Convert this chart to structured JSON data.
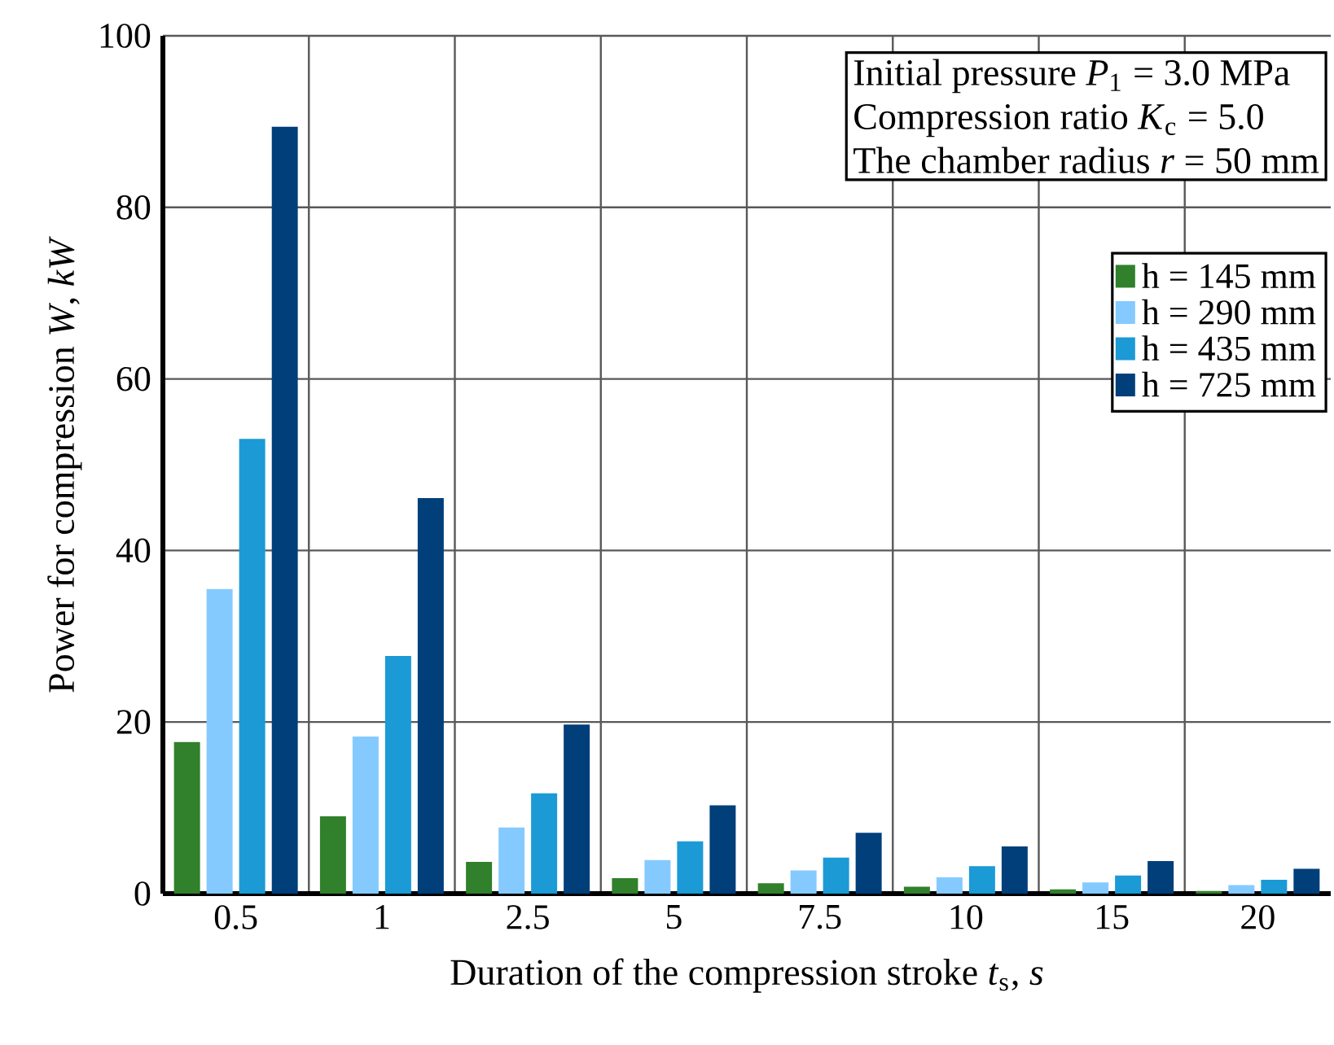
{
  "chart_data": {
    "type": "bar",
    "xlabel": "Duration of the compression stroke *t*$_{s}$, *s*",
    "ylabel": "Power for compression *W*, *kW*",
    "annotations": [
      "Initial pressure *P*$_{1}$ = 3.0 MPa",
      "Compression ratio *K*$_{c}$ = 5.0",
      "The chamber radius *r* = 50 mm"
    ],
    "categories": [
      "0.5",
      "1",
      "2.5",
      "5",
      "7.5",
      "10",
      "15",
      "20"
    ],
    "series": [
      {
        "name": "h = 145 mm",
        "color": "#31802b",
        "values": [
          17.7,
          9.0,
          3.7,
          1.8,
          1.2,
          0.8,
          0.5,
          0.3
        ]
      },
      {
        "name": "h = 290 mm",
        "color": "#85caff",
        "values": [
          35.5,
          18.3,
          7.7,
          3.9,
          2.7,
          1.9,
          1.3,
          1.0
        ]
      },
      {
        "name": "h = 435 mm",
        "color": "#1b9ad6",
        "values": [
          53.0,
          27.7,
          11.7,
          6.1,
          4.2,
          3.2,
          2.1,
          1.6
        ]
      },
      {
        "name": "h = 725 mm",
        "color": "#003f7a",
        "values": [
          89.4,
          46.1,
          19.7,
          10.3,
          7.1,
          5.5,
          3.8,
          2.9
        ]
      }
    ],
    "ylim": [
      0,
      100
    ],
    "yticks": [
      0,
      20,
      40,
      60,
      80,
      100
    ],
    "grid": true,
    "legend": "top right"
  }
}
